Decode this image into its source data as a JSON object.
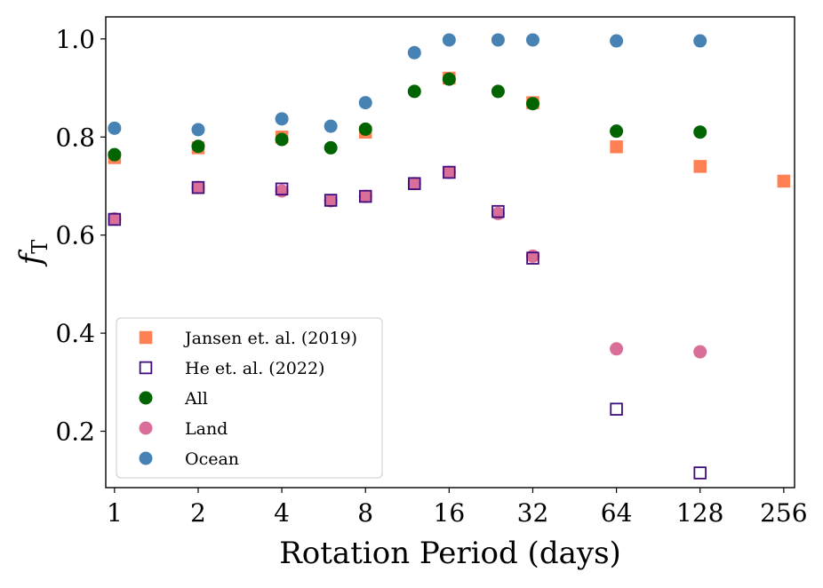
{
  "chart_data": {
    "type": "scatter",
    "title": "",
    "xlabel": "Rotation Period (days)",
    "ylabel_base": "f",
    "ylabel_sub": "T",
    "x_scale": "log2",
    "xlim": [
      0.93,
      280
    ],
    "ylim": [
      0.085,
      1.045
    ],
    "x_ticks": [
      1,
      2,
      4,
      8,
      16,
      32,
      64,
      128,
      256
    ],
    "x_tick_labels": [
      "1",
      "2",
      "4",
      "8",
      "16",
      "32",
      "64",
      "128",
      "256"
    ],
    "y_ticks": [
      0.2,
      0.4,
      0.6,
      0.8,
      1.0
    ],
    "y_tick_labels": [
      "0.2",
      "0.4",
      "0.6",
      "0.8",
      "1.0"
    ],
    "grid": false,
    "legend_position": "lower-left",
    "series": [
      {
        "name": "Jansen et. al. (2019)",
        "marker": "square-filled",
        "color": "#FF8052",
        "x": [
          1,
          2,
          4,
          8,
          16,
          32,
          64,
          128,
          256
        ],
        "y": [
          0.758,
          0.778,
          0.8,
          0.81,
          0.92,
          0.87,
          0.78,
          0.74,
          0.71
        ]
      },
      {
        "name": "He et. al. (2022)",
        "marker": "square-open",
        "color": "#3F0C7D",
        "x": [
          1,
          2,
          4,
          6,
          8,
          12,
          16,
          24,
          32,
          64,
          128
        ],
        "y": [
          0.632,
          0.697,
          0.694,
          0.671,
          0.679,
          0.705,
          0.728,
          0.648,
          0.553,
          0.245,
          0.115
        ]
      },
      {
        "name": "All",
        "marker": "circle",
        "color": "#006400",
        "x": [
          1,
          2,
          4,
          6,
          8,
          12,
          16,
          24,
          32,
          64,
          128
        ],
        "y": [
          0.764,
          0.781,
          0.795,
          0.778,
          0.816,
          0.893,
          0.918,
          0.893,
          0.868,
          0.812,
          0.81
        ]
      },
      {
        "name": "Land",
        "marker": "circle",
        "color": "#D96F98",
        "x": [
          1,
          2,
          4,
          6,
          8,
          12,
          16,
          24,
          32,
          64,
          128
        ],
        "y": [
          0.633,
          0.697,
          0.69,
          0.67,
          0.679,
          0.705,
          0.728,
          0.644,
          0.557,
          0.368,
          0.362
        ]
      },
      {
        "name": "Ocean",
        "marker": "circle",
        "color": "#4682B4",
        "x": [
          1,
          2,
          4,
          6,
          8,
          12,
          16,
          24,
          32,
          64,
          128
        ],
        "y": [
          0.818,
          0.815,
          0.837,
          0.822,
          0.87,
          0.972,
          0.998,
          0.998,
          0.998,
          0.996,
          0.996
        ]
      }
    ],
    "draw_order": [
      "Jansen et. al. (2019)",
      "All",
      "Land",
      "He et. al. (2022)",
      "Ocean"
    ]
  }
}
